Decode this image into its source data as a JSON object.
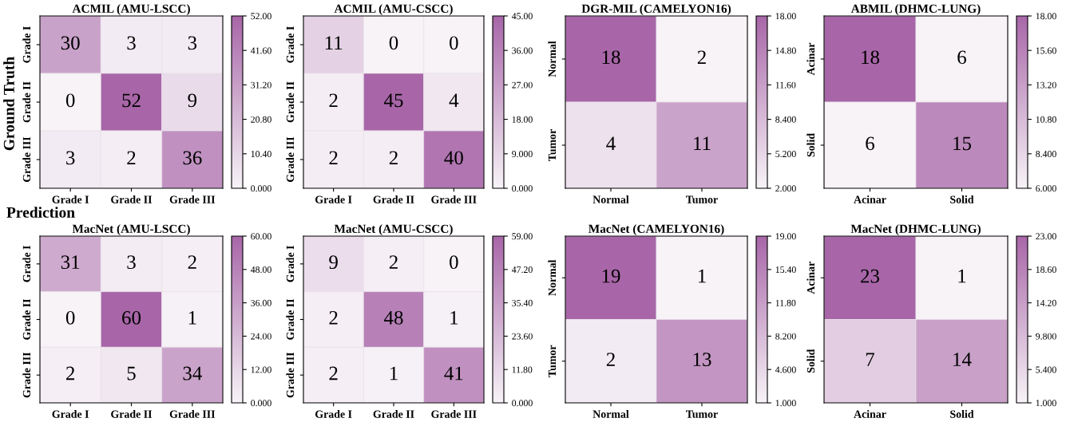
{
  "chart_data": [
    {
      "type": "heatmap",
      "title": "ACMIL (AMU-LSCC)",
      "categories": [
        "Grade I",
        "Grade II",
        "Grade III"
      ],
      "y_categories": [
        "Grade I",
        "Grade II",
        "Grade III"
      ],
      "cells": [
        [
          30,
          3,
          3
        ],
        [
          0,
          52,
          9
        ],
        [
          3,
          2,
          36
        ]
      ],
      "data_labels": true,
      "colors": [
        "#f7f3f7",
        "#a866a8"
      ],
      "clim": [
        0,
        52
      ],
      "cticks": [
        {
          "value": 0,
          "label": "0.000"
        },
        {
          "value": 10.4,
          "label": "10.40"
        },
        {
          "value": 20.8,
          "label": "20.80"
        },
        {
          "value": 31.2,
          "label": "31.20"
        },
        {
          "value": 41.6,
          "label": "41.60"
        },
        {
          "value": 52,
          "label": "52.00"
        }
      ],
      "annotations": [
        "Ground Truth",
        "Prediction"
      ]
    },
    {
      "type": "heatmap",
      "title": "ACMIL (AMU-CSCC)",
      "categories": [
        "Grade I",
        "Grade II",
        "Grade III"
      ],
      "y_categories": [
        "Grade I",
        "Grade II",
        "Grade III"
      ],
      "cells": [
        [
          11,
          0,
          0
        ],
        [
          2,
          45,
          4
        ],
        [
          2,
          2,
          40
        ]
      ],
      "data_labels": true,
      "colors": [
        "#f7f3f7",
        "#a866a8"
      ],
      "clim": [
        0,
        45
      ],
      "cticks": [
        {
          "value": 0,
          "label": "0.000"
        },
        {
          "value": 9,
          "label": "9.000"
        },
        {
          "value": 18,
          "label": "18.00"
        },
        {
          "value": 27,
          "label": "27.00"
        },
        {
          "value": 36,
          "label": "36.00"
        },
        {
          "value": 45,
          "label": "45.00"
        }
      ]
    },
    {
      "type": "heatmap",
      "title": "DGR-MIL (CAMELYON16)",
      "categories": [
        "Normal",
        "Tumor"
      ],
      "y_categories": [
        "Normal",
        "Tumor"
      ],
      "cells": [
        [
          18,
          2
        ],
        [
          4,
          11
        ]
      ],
      "data_labels": true,
      "colors": [
        "#f7f3f7",
        "#a866a8"
      ],
      "clim": [
        2,
        18
      ],
      "cticks": [
        {
          "value": 2,
          "label": "2.000"
        },
        {
          "value": 5.2,
          "label": "5.200"
        },
        {
          "value": 8.4,
          "label": "8.400"
        },
        {
          "value": 11.6,
          "label": "11.60"
        },
        {
          "value": 14.8,
          "label": "14.80"
        },
        {
          "value": 18,
          "label": "18.00"
        }
      ]
    },
    {
      "type": "heatmap",
      "title": "ABMIL (DHMC-LUNG)",
      "categories": [
        "Acinar",
        "Solid"
      ],
      "y_categories": [
        "Acinar",
        "Solid"
      ],
      "cells": [
        [
          18,
          6
        ],
        [
          6,
          15
        ]
      ],
      "data_labels": true,
      "colors": [
        "#f7f3f7",
        "#a866a8"
      ],
      "clim": [
        6,
        18
      ],
      "cticks": [
        {
          "value": 6,
          "label": "6.000"
        },
        {
          "value": 8.4,
          "label": "8.400"
        },
        {
          "value": 10.8,
          "label": "10.80"
        },
        {
          "value": 13.2,
          "label": "13.20"
        },
        {
          "value": 15.6,
          "label": "15.60"
        },
        {
          "value": 18,
          "label": "18.00"
        }
      ]
    },
    {
      "type": "heatmap",
      "title": "MacNet (AMU-LSCC)",
      "categories": [
        "Grade I",
        "Grade II",
        "Grade III"
      ],
      "y_categories": [
        "Grade I",
        "Grade II",
        "Grade III"
      ],
      "cells": [
        [
          31,
          3,
          2
        ],
        [
          0,
          60,
          1
        ],
        [
          2,
          5,
          34
        ]
      ],
      "data_labels": true,
      "colors": [
        "#f7f3f7",
        "#a866a8"
      ],
      "clim": [
        0,
        60
      ],
      "cticks": [
        {
          "value": 0,
          "label": "0.000"
        },
        {
          "value": 12,
          "label": "12.00"
        },
        {
          "value": 24,
          "label": "24.00"
        },
        {
          "value": 36,
          "label": "36.00"
        },
        {
          "value": 48,
          "label": "48.00"
        },
        {
          "value": 60,
          "label": "60.00"
        }
      ]
    },
    {
      "type": "heatmap",
      "title": "MacNet (AMU-CSCC)",
      "categories": [
        "Grade I",
        "Grade II",
        "Grade III"
      ],
      "y_categories": [
        "Grade I",
        "Grade II",
        "Grade III"
      ],
      "cells": [
        [
          9,
          2,
          0
        ],
        [
          2,
          48,
          1
        ],
        [
          2,
          1,
          41
        ]
      ],
      "data_labels": true,
      "colors": [
        "#f7f3f7",
        "#a866a8"
      ],
      "clim": [
        0,
        59
      ],
      "cticks": [
        {
          "value": 0,
          "label": "0.000"
        },
        {
          "value": 11.8,
          "label": "11.80"
        },
        {
          "value": 23.6,
          "label": "23.60"
        },
        {
          "value": 35.4,
          "label": "35.40"
        },
        {
          "value": 47.2,
          "label": "47.20"
        },
        {
          "value": 59,
          "label": "59.00"
        }
      ]
    },
    {
      "type": "heatmap",
      "title": "MacNet (CAMELYON16)",
      "categories": [
        "Normal",
        "Tumor"
      ],
      "y_categories": [
        "Normal",
        "Tumor"
      ],
      "cells": [
        [
          19,
          1
        ],
        [
          2,
          13
        ]
      ],
      "data_labels": true,
      "colors": [
        "#f7f3f7",
        "#a866a8"
      ],
      "clim": [
        1,
        19
      ],
      "cticks": [
        {
          "value": 1,
          "label": "1.000"
        },
        {
          "value": 4.6,
          "label": "4.600"
        },
        {
          "value": 8.2,
          "label": "8.200"
        },
        {
          "value": 11.8,
          "label": "11.80"
        },
        {
          "value": 15.4,
          "label": "15.40"
        },
        {
          "value": 19,
          "label": "19.00"
        }
      ]
    },
    {
      "type": "heatmap",
      "title": "MacNet (DHMC-LUNG)",
      "categories": [
        "Acinar",
        "Solid"
      ],
      "y_categories": [
        "Acinar",
        "Solid"
      ],
      "cells": [
        [
          23,
          1
        ],
        [
          7,
          14
        ]
      ],
      "data_labels": true,
      "colors": [
        "#f7f3f7",
        "#a866a8"
      ],
      "clim": [
        1,
        23
      ],
      "cticks": [
        {
          "value": 1,
          "label": "1.000"
        },
        {
          "value": 5.4,
          "label": "5.400"
        },
        {
          "value": 9.8,
          "label": "9.800"
        },
        {
          "value": 14.2,
          "label": "14.20"
        },
        {
          "value": 18.6,
          "label": "18.60"
        },
        {
          "value": 23,
          "label": "23.00"
        }
      ]
    }
  ]
}
